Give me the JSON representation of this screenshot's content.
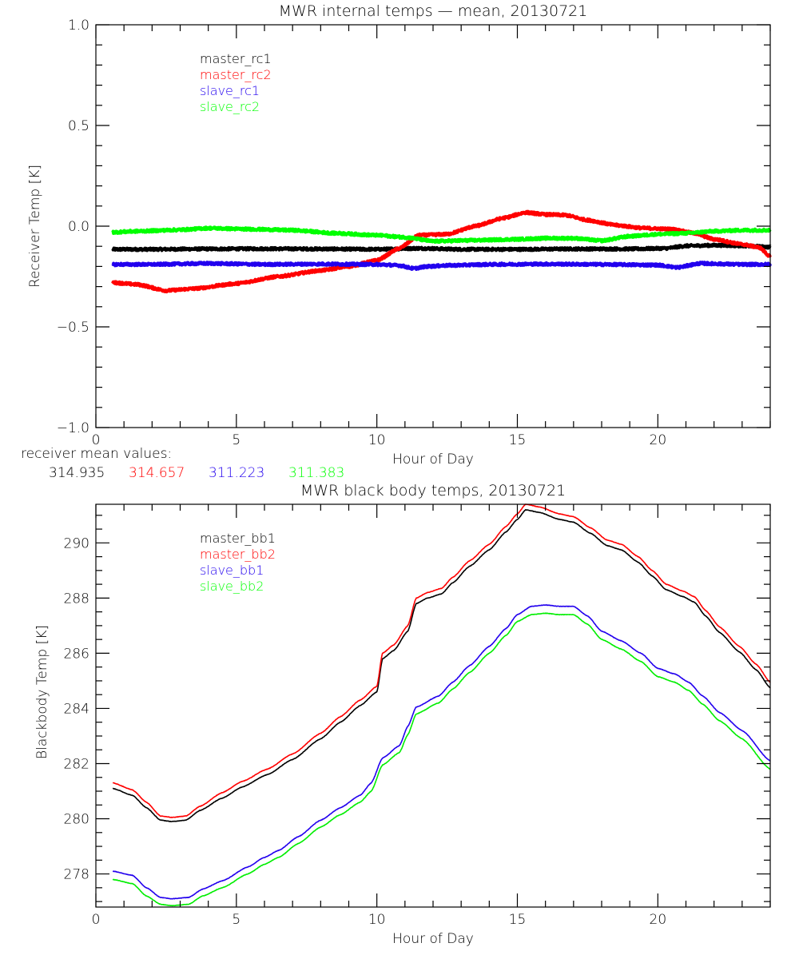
{
  "chart_data": [
    {
      "type": "line",
      "title": "MWR internal temps — mean, 20130721",
      "xlabel": "Hour of Day",
      "ylabel": "Receiver Temp [K]",
      "xlim": [
        0,
        24
      ],
      "ylim": [
        -1.0,
        1.0
      ],
      "xticks": [
        0,
        5,
        10,
        15,
        20
      ],
      "xtick_labels": [
        "0",
        "5",
        "10",
        "15",
        "20"
      ],
      "x_minor_step": 1,
      "yticks": [
        -1.0,
        -0.5,
        0.0,
        0.5,
        1.0
      ],
      "ytick_labels": [
        "−1.0",
        "−0.5",
        "0.0",
        "0.5",
        "1.0"
      ],
      "y_minor_step": 0.1,
      "grid": false,
      "legend_position": "top-left",
      "series": [
        {
          "name": "master_rc1",
          "color": "#000000",
          "x": [
            0.6,
            2,
            4,
            6,
            8,
            10,
            11.5,
            13,
            15,
            17,
            19,
            20.3,
            21,
            22,
            23,
            24
          ],
          "y": [
            -0.115,
            -0.115,
            -0.113,
            -0.112,
            -0.113,
            -0.115,
            -0.11,
            -0.115,
            -0.115,
            -0.113,
            -0.113,
            -0.11,
            -0.098,
            -0.095,
            -0.097,
            -0.104
          ]
        },
        {
          "name": "master_rc2",
          "color": "#ff0000",
          "x": [
            0.6,
            1.5,
            2.5,
            3.5,
            5,
            6.5,
            8,
            9,
            10,
            10.8,
            11.5,
            12.5,
            13.5,
            14.5,
            15.3,
            16,
            16.7,
            17.5,
            18.5,
            19.5,
            20.5,
            21.3,
            22,
            23,
            23.6,
            24
          ],
          "y": [
            -0.28,
            -0.29,
            -0.32,
            -0.31,
            -0.285,
            -0.25,
            -0.22,
            -0.2,
            -0.17,
            -0.11,
            -0.045,
            -0.04,
            0.0,
            0.04,
            0.068,
            0.058,
            0.055,
            0.03,
            0.005,
            -0.01,
            -0.015,
            -0.035,
            -0.065,
            -0.09,
            -0.105,
            -0.15
          ]
        },
        {
          "name": "slave_rc1",
          "color": "#2200ee",
          "x": [
            0.6,
            2,
            4,
            6,
            8,
            10,
            10.8,
            11.3,
            11.8,
            12.5,
            14,
            16,
            18,
            20,
            20.7,
            21.5,
            23,
            24
          ],
          "y": [
            -0.19,
            -0.19,
            -0.185,
            -0.19,
            -0.188,
            -0.19,
            -0.195,
            -0.21,
            -0.2,
            -0.195,
            -0.19,
            -0.188,
            -0.19,
            -0.193,
            -0.205,
            -0.185,
            -0.19,
            -0.19
          ]
        },
        {
          "name": "slave_rc2",
          "color": "#00ff00",
          "x": [
            0.6,
            1.5,
            3,
            4,
            5.5,
            7,
            8.5,
            10,
            11,
            12,
            13.5,
            15,
            16,
            17,
            18,
            19,
            20,
            21,
            22,
            23,
            24
          ],
          "y": [
            -0.03,
            -0.025,
            -0.018,
            -0.01,
            -0.015,
            -0.02,
            -0.035,
            -0.045,
            -0.055,
            -0.075,
            -0.07,
            -0.065,
            -0.06,
            -0.06,
            -0.072,
            -0.05,
            -0.04,
            -0.035,
            -0.025,
            -0.02,
            -0.02
          ]
        }
      ],
      "annotation": {
        "label": "receiver mean values:",
        "values": [
          {
            "text": "314.935",
            "color": "#000000"
          },
          {
            "text": "314.657",
            "color": "#ff0000"
          },
          {
            "text": "311.223",
            "color": "#2200ee"
          },
          {
            "text": "311.383",
            "color": "#00ff00"
          }
        ]
      }
    },
    {
      "type": "line",
      "title": "MWR black body temps, 20130721",
      "xlabel": "Hour of Day",
      "ylabel": "Blackbody Temp [K]",
      "xlim": [
        0,
        24
      ],
      "ylim": [
        276.8,
        291.4
      ],
      "xticks": [
        0,
        5,
        10,
        15,
        20
      ],
      "xtick_labels": [
        "0",
        "5",
        "10",
        "15",
        "20"
      ],
      "x_minor_step": 1,
      "yticks": [
        278,
        280,
        282,
        284,
        286,
        288,
        290
      ],
      "ytick_labels": [
        "278",
        "280",
        "282",
        "284",
        "286",
        "288",
        "290"
      ],
      "y_minor_step": 0.5,
      "grid": false,
      "legend_position": "top-left",
      "series": [
        {
          "name": "master_bb1",
          "color": "#000000",
          "x": [
            0.6,
            1.3,
            1.8,
            2.3,
            2.7,
            3.2,
            3.7,
            4.5,
            5.2,
            6.1,
            7,
            8,
            8.7,
            9.4,
            10.0,
            10.2,
            10.6,
            11.1,
            11.4,
            11.8,
            12.3,
            12.7,
            13.3,
            14,
            14.6,
            15.0,
            15.3,
            15.8,
            16.5,
            17.0,
            17.6,
            18.2,
            18.7,
            19.3,
            19.8,
            20.3,
            20.9,
            21.3,
            21.7,
            22.2,
            22.9,
            23.5,
            24.0
          ],
          "y": [
            281.1,
            280.85,
            280.4,
            279.95,
            279.9,
            279.95,
            280.3,
            280.75,
            281.15,
            281.6,
            282.15,
            282.9,
            283.5,
            284.1,
            284.6,
            285.8,
            286.1,
            286.8,
            287.8,
            288.0,
            288.15,
            288.55,
            289.15,
            289.75,
            290.4,
            290.85,
            291.2,
            291.1,
            290.85,
            290.75,
            290.35,
            289.9,
            289.75,
            289.3,
            288.8,
            288.3,
            288.05,
            287.85,
            287.35,
            286.75,
            286.05,
            285.4,
            284.75
          ]
        },
        {
          "name": "master_bb2",
          "color": "#ff0000",
          "x": [
            0.6,
            1.3,
            1.8,
            2.3,
            2.7,
            3.2,
            3.7,
            4.5,
            5.2,
            6.1,
            7,
            8,
            8.7,
            9.4,
            10.0,
            10.2,
            10.6,
            11.1,
            11.4,
            11.8,
            12.3,
            12.7,
            13.3,
            14,
            14.6,
            15.0,
            15.3,
            15.8,
            16.5,
            17.0,
            17.6,
            18.2,
            18.7,
            19.3,
            19.8,
            20.3,
            20.9,
            21.3,
            21.7,
            22.2,
            22.9,
            23.5,
            24.0
          ],
          "y": [
            281.3,
            281.05,
            280.6,
            280.1,
            280.05,
            280.1,
            280.45,
            280.95,
            281.35,
            281.8,
            282.35,
            283.1,
            283.7,
            284.3,
            284.8,
            286.0,
            286.3,
            287.0,
            288.0,
            288.2,
            288.35,
            288.75,
            289.35,
            289.95,
            290.6,
            291.05,
            291.4,
            291.3,
            291.05,
            290.95,
            290.55,
            290.1,
            289.95,
            289.5,
            289.0,
            288.5,
            288.25,
            288.05,
            287.55,
            286.95,
            286.25,
            285.6,
            284.95
          ]
        },
        {
          "name": "slave_bb1",
          "color": "#2200ee",
          "x": [
            0.6,
            1.3,
            1.8,
            2.3,
            2.7,
            3.3,
            3.8,
            4.5,
            5.4,
            6.0,
            6.5,
            7.2,
            8.0,
            8.7,
            9.4,
            9.8,
            10.2,
            10.8,
            11.1,
            11.4,
            12.2,
            12.7,
            13.3,
            14,
            14.6,
            15.0,
            15.5,
            16.0,
            16.5,
            17.0,
            17.5,
            18.0,
            18.7,
            19.4,
            20.0,
            20.6,
            21.1,
            21.6,
            22.2,
            23.0,
            24.0
          ],
          "y": [
            278.1,
            277.95,
            277.5,
            277.15,
            277.1,
            277.15,
            277.45,
            277.75,
            278.25,
            278.6,
            278.85,
            279.35,
            279.95,
            280.4,
            280.85,
            281.3,
            282.2,
            282.65,
            283.35,
            284.05,
            284.45,
            284.95,
            285.55,
            286.25,
            286.9,
            287.4,
            287.7,
            287.75,
            287.7,
            287.7,
            287.35,
            286.8,
            286.45,
            286.0,
            285.45,
            285.25,
            284.95,
            284.45,
            283.85,
            283.2,
            282.1
          ]
        },
        {
          "name": "slave_bb2",
          "color": "#00ee00",
          "x": [
            0.6,
            1.3,
            1.8,
            2.3,
            2.7,
            3.3,
            3.8,
            4.5,
            5.4,
            6.0,
            6.5,
            7.2,
            8.0,
            8.7,
            9.4,
            9.8,
            10.2,
            10.8,
            11.1,
            11.4,
            12.2,
            12.7,
            13.3,
            14,
            14.6,
            15.0,
            15.5,
            16.0,
            16.5,
            17.0,
            17.5,
            18.0,
            18.7,
            19.4,
            20.0,
            20.6,
            21.1,
            21.6,
            22.2,
            23.0,
            24.0
          ],
          "y": [
            277.8,
            277.65,
            277.2,
            276.9,
            276.85,
            276.9,
            277.2,
            277.5,
            278.0,
            278.35,
            278.6,
            279.1,
            279.7,
            280.15,
            280.6,
            281.0,
            281.95,
            282.4,
            283.05,
            283.8,
            284.2,
            284.7,
            285.3,
            286.0,
            286.65,
            287.15,
            287.4,
            287.45,
            287.4,
            287.4,
            287.05,
            286.5,
            286.15,
            285.7,
            285.15,
            284.95,
            284.65,
            284.15,
            283.55,
            282.9,
            281.8
          ]
        }
      ]
    }
  ]
}
